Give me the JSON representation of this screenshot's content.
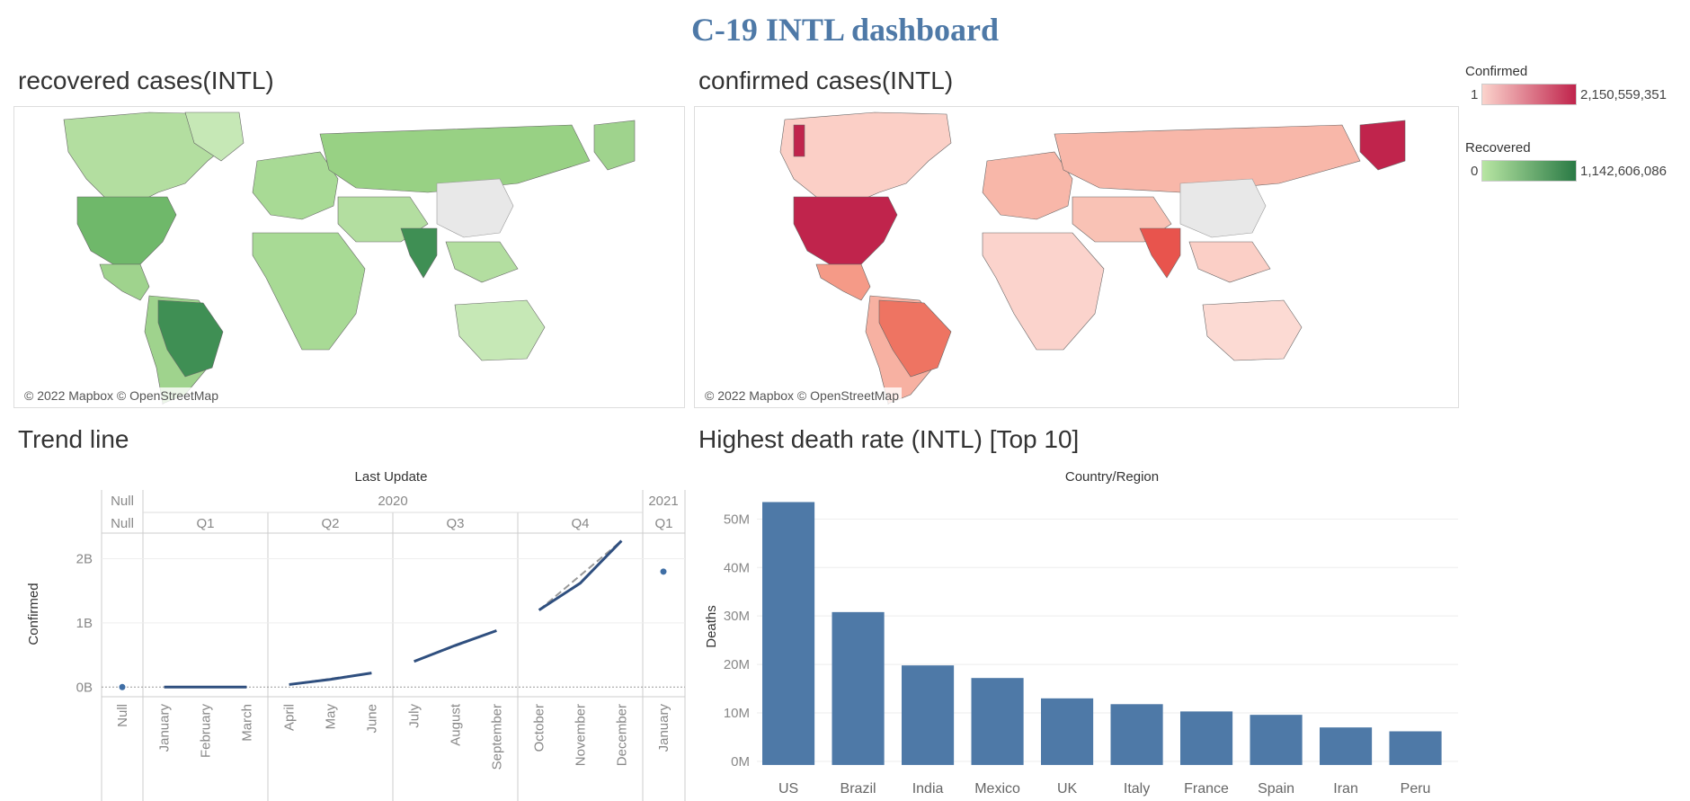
{
  "dashboard": {
    "title": "C-19 INTL dashboard"
  },
  "recovered_map": {
    "title": "recovered cases(INTL)",
    "attribution": "© 2022 Mapbox © OpenStreetMap"
  },
  "confirmed_map": {
    "title": "confirmed cases(INTL)",
    "attribution": "© 2022 Mapbox © OpenStreetMap"
  },
  "legend": {
    "confirmed": {
      "title": "Confirmed",
      "min": "1",
      "max": "2,150,559,351",
      "color_low": "#fbd3cc",
      "color_high": "#c0244c"
    },
    "recovered": {
      "title": "Recovered",
      "min": "0",
      "max": "1,142,606,086",
      "color_low": "#b8e6a3",
      "color_high": "#2a7a45"
    }
  },
  "trend": {
    "title": "Trend line",
    "header": "Last Update",
    "y_label": "Confirmed",
    "years": [
      "Null",
      "2020",
      "2021"
    ],
    "quarters": [
      "Null",
      "Q1",
      "Q2",
      "Q3",
      "Q4",
      "Q1"
    ],
    "y_ticks": [
      "2B",
      "1B",
      "0B"
    ],
    "months": [
      "Null",
      "January",
      "February",
      "March",
      "April",
      "May",
      "June",
      "July",
      "August",
      "September",
      "October",
      "November",
      "December",
      "January"
    ]
  },
  "death": {
    "title": "Highest death rate (INTL) [Top 10]",
    "header": "Country/Region",
    "y_label": "Deaths",
    "y_ticks": [
      "50M",
      "40M",
      "30M",
      "20M",
      "10M",
      "0M"
    ]
  },
  "chart_data": [
    {
      "type": "line",
      "title": "Trend line",
      "xlabel": "Last Update",
      "ylabel": "Confirmed",
      "ylim": [
        -0.15,
        2.4
      ],
      "x": [
        "Null",
        "January 2020",
        "February 2020",
        "March 2020",
        "April 2020",
        "May 2020",
        "June 2020",
        "July 2020",
        "August 2020",
        "September 2020",
        "October 2020",
        "November 2020",
        "December 2020",
        "January 2021"
      ],
      "series": [
        {
          "name": "Confirmed",
          "values": [
            0.0,
            0.0,
            0.0,
            0.0,
            0.04,
            0.12,
            0.22,
            0.4,
            0.65,
            0.88,
            1.2,
            1.62,
            2.28,
            1.8
          ]
        }
      ]
    },
    {
      "type": "bar",
      "title": "Highest death rate (INTL) [Top 10]",
      "xlabel": "Country/Region",
      "ylabel": "Deaths",
      "ylim": [
        -1.5,
        56
      ],
      "categories": [
        "US",
        "Brazil",
        "India",
        "Mexico",
        "UK",
        "Italy",
        "France",
        "Spain",
        "Iran",
        "Peru"
      ],
      "values": [
        53.5,
        30.8,
        19.8,
        17.2,
        13.0,
        11.8,
        10.3,
        9.6,
        7.0,
        6.2
      ]
    }
  ]
}
